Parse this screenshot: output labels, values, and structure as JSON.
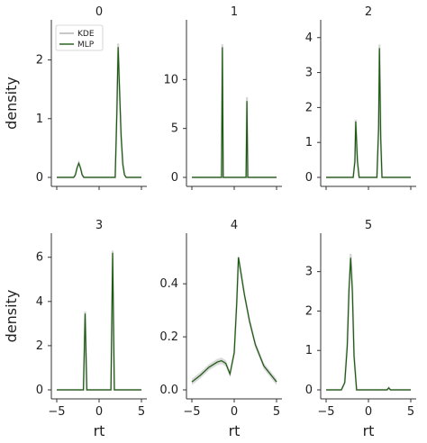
{
  "chart_data": {
    "type": "line",
    "layout": "2x3 small multiples",
    "xlabel": "rt",
    "ylabel": "density",
    "legend": {
      "placement": "top-left of panel 0",
      "entries": [
        "KDE",
        "MLP"
      ]
    },
    "colors": {
      "kde": "#c8c8c8",
      "mlp": "#1d5a12",
      "band": "#bdbdbd"
    },
    "grid": false,
    "panels": [
      {
        "title": "0",
        "xlim": [
          -5,
          5
        ],
        "ylim": [
          0,
          2.5
        ],
        "xticks": [
          "-5",
          "0",
          "5"
        ],
        "yticks": [
          "0",
          "1",
          "2"
        ],
        "x": [
          -5,
          -3,
          -2.8,
          -2.6,
          -2.4,
          -2.2,
          -2.0,
          -1.8,
          1.9,
          2.1,
          2.25,
          2.4,
          2.6,
          2.8,
          3.0,
          3.2,
          5
        ],
        "kde": [
          0,
          0,
          0.05,
          0.17,
          0.25,
          0.17,
          0.05,
          0,
          0,
          1.2,
          2.28,
          1.6,
          0.75,
          0.25,
          0.05,
          0,
          0
        ],
        "mlp": [
          0,
          0,
          0.04,
          0.16,
          0.24,
          0.16,
          0.04,
          0,
          0,
          1.1,
          2.22,
          1.55,
          0.7,
          0.22,
          0.04,
          0,
          0
        ]
      },
      {
        "title": "1",
        "xlim": [
          -5,
          5
        ],
        "ylim": [
          0,
          15
        ],
        "xticks": [
          "-5",
          "0",
          "5"
        ],
        "yticks": [
          "0",
          "5",
          "10"
        ],
        "x": [
          -5,
          -1.5,
          -1.4,
          -1.3,
          1.4,
          1.5,
          1.6,
          5
        ],
        "kde": [
          0,
          0,
          13.6,
          0,
          0,
          8.2,
          0,
          0
        ],
        "mlp": [
          0,
          0,
          13.3,
          0,
          0,
          7.8,
          0,
          0
        ]
      },
      {
        "title": "2",
        "xlim": [
          -5,
          5
        ],
        "ylim": [
          0,
          4.2
        ],
        "xticks": [
          "-5",
          "0",
          "5"
        ],
        "yticks": [
          "0",
          "1",
          "2",
          "3",
          "4"
        ],
        "x": [
          -5,
          -1.8,
          -1.6,
          -1.5,
          -1.3,
          -1.1,
          1.0,
          1.2,
          1.3,
          1.45,
          1.6,
          5
        ],
        "kde": [
          0,
          0,
          0.5,
          1.65,
          0.5,
          0,
          0,
          1.5,
          3.8,
          1.2,
          0,
          0
        ],
        "mlp": [
          0,
          0,
          0.45,
          1.6,
          0.45,
          0,
          0,
          1.4,
          3.7,
          1.1,
          0,
          0
        ]
      },
      {
        "title": "3",
        "xlim": [
          -5,
          5
        ],
        "ylim": [
          0,
          6.6
        ],
        "xticks": [
          "-5",
          "0",
          "5"
        ],
        "yticks": [
          "0",
          "2",
          "4",
          "6"
        ],
        "x": [
          -5,
          -1.85,
          -1.65,
          -1.45,
          1.4,
          1.6,
          1.8,
          5
        ],
        "kde": [
          0,
          0,
          3.55,
          0,
          0,
          6.3,
          0,
          0
        ],
        "mlp": [
          0,
          0,
          3.45,
          0,
          0,
          6.2,
          0,
          0
        ]
      },
      {
        "title": "4",
        "xlim": [
          -5,
          5
        ],
        "ylim": [
          0,
          0.55
        ],
        "xticks": [
          "-5",
          "0",
          "5"
        ],
        "yticks": [
          "0.0",
          "0.2",
          "0.4"
        ],
        "x": [
          -5,
          -4,
          -3,
          -2,
          -1.5,
          -1,
          -0.5,
          0,
          0.3,
          0.5,
          0.8,
          1.2,
          1.8,
          2.5,
          3.5,
          5
        ],
        "kde": [
          0.03,
          0.055,
          0.085,
          0.105,
          0.11,
          0.1,
          0.06,
          0.14,
          0.33,
          0.5,
          0.44,
          0.36,
          0.26,
          0.17,
          0.09,
          0.03
        ],
        "mlp": [
          0.03,
          0.055,
          0.085,
          0.105,
          0.11,
          0.1,
          0.06,
          0.14,
          0.33,
          0.5,
          0.44,
          0.36,
          0.26,
          0.17,
          0.09,
          0.03
        ]
      },
      {
        "title": "5",
        "xlim": [
          -5,
          5
        ],
        "ylim": [
          0,
          3.7
        ],
        "xticks": [
          "-5",
          "0",
          "5"
        ],
        "yticks": [
          "0",
          "1",
          "2",
          "3"
        ],
        "x": [
          -5,
          -3.2,
          -2.8,
          -2.5,
          -2.3,
          -2.1,
          -1.9,
          -1.7,
          -1.4,
          2.2,
          2.4,
          2.6,
          5
        ],
        "kde": [
          0,
          0,
          0.2,
          1.2,
          2.6,
          3.45,
          2.6,
          0.9,
          0,
          0,
          0.06,
          0,
          0
        ],
        "mlp": [
          0,
          0,
          0.18,
          1.1,
          2.5,
          3.35,
          2.5,
          0.85,
          0,
          0,
          0.05,
          0,
          0
        ]
      }
    ]
  }
}
